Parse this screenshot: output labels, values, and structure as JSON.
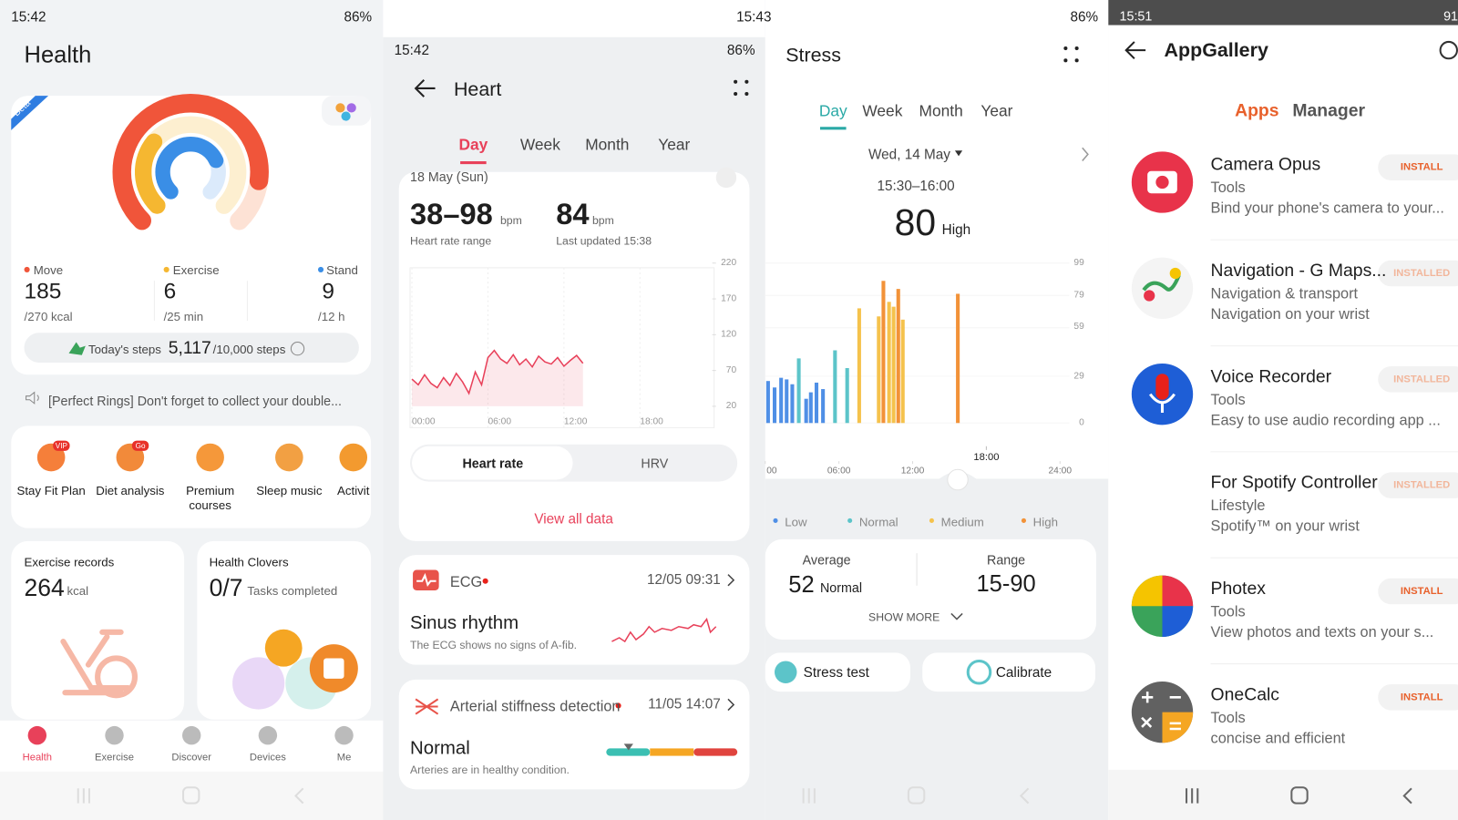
{
  "status": {
    "p1_time": "15:42",
    "p1_batt": "86%",
    "p2_time": "15:42",
    "p2_batt": "86%",
    "p3_time": "15:43",
    "p3_batt": "86%",
    "p4_time": "15:51",
    "p4_batt": "91"
  },
  "health": {
    "title": "Health",
    "badge": "Beta",
    "stats": [
      {
        "label": "Move",
        "value": "185",
        "target": "/270 kcal",
        "color": "#f0553a"
      },
      {
        "label": "Exercise",
        "value": "6",
        "target": "/25 min",
        "color": "#f5b731"
      },
      {
        "label": "Stand",
        "value": "9",
        "target": "/12 h",
        "color": "#3a8ee6"
      }
    ],
    "steps": {
      "label": "Today's steps",
      "value": "5,117",
      "target": "/10,000 steps"
    },
    "notice": "[Perfect Rings] Don't forget to collect your double...",
    "shortcuts": [
      {
        "label": "Stay Fit Plan",
        "badge": "VIP"
      },
      {
        "label": "Diet analysis",
        "badge": "Go"
      },
      {
        "label": "Premium courses"
      },
      {
        "label": "Sleep music"
      },
      {
        "label": "Activit"
      }
    ],
    "exercise_records": {
      "title": "Exercise records",
      "value": "264",
      "unit": "kcal"
    },
    "health_clovers": {
      "title": "Health Clovers",
      "value": "0/7",
      "unit": "Tasks completed"
    },
    "nav": [
      "Health",
      "Exercise",
      "Discover",
      "Devices",
      "Me"
    ]
  },
  "heart": {
    "title": "Heart",
    "tabs": [
      "Day",
      "Week",
      "Month",
      "Year"
    ],
    "date": "18 May (Sun)",
    "range": "38–98",
    "range_unit": "bpm",
    "range_label": "Heart rate range",
    "latest": "84",
    "latest_unit": "bpm",
    "latest_label": "Last updated 15:38",
    "chart": {
      "type": "area",
      "color": "#e8415a",
      "ylim": [
        20,
        220
      ],
      "yticks": [
        220,
        170,
        120,
        70,
        20
      ],
      "xlim": [
        0,
        24
      ],
      "xticks": [
        {
          "value": 0,
          "label": "00:00"
        },
        {
          "value": 6,
          "label": "06:00"
        },
        {
          "value": 12,
          "label": "12:00"
        },
        {
          "value": 18,
          "label": "18:00"
        }
      ],
      "x": [
        0,
        0.5,
        1,
        1.5,
        2,
        2.5,
        3,
        3.5,
        4,
        4.5,
        5,
        5.5,
        6,
        6.5,
        7,
        7.5,
        8,
        8.5,
        9,
        9.5,
        10,
        10.5,
        11,
        11.5,
        12,
        12.5,
        13,
        13.5
      ],
      "values": [
        58,
        50,
        64,
        52,
        46,
        60,
        49,
        66,
        54,
        38,
        68,
        50,
        88,
        98,
        86,
        80,
        92,
        78,
        86,
        75,
        90,
        82,
        79,
        88,
        76,
        84,
        91,
        80
      ]
    },
    "toggle": [
      "Heart rate",
      "HRV"
    ],
    "view_all": "View all data",
    "ecg": {
      "title": "ECG",
      "date": "12/05 09:31",
      "result": "Sinus rhythm",
      "note": "The ECG shows no signs of A-fib."
    },
    "arterial": {
      "title": "Arterial stiffness detection",
      "date": "11/05 14:07",
      "result": "Normal",
      "note": "Arteries are in healthy condition."
    }
  },
  "stress": {
    "title": "Stress",
    "tabs": [
      "Day",
      "Week",
      "Month",
      "Year"
    ],
    "date": "Wed, 14 May",
    "time": "15:30–16:00",
    "value": "80",
    "level": "High",
    "chart": {
      "type": "bar",
      "ylim": [
        0,
        99
      ],
      "yticks": [
        99,
        79,
        59,
        29,
        0
      ],
      "xlim": [
        0,
        24
      ],
      "xticks": [
        {
          "value": 0,
          "label": "00"
        },
        {
          "value": 6,
          "label": "06:00"
        },
        {
          "value": 12,
          "label": "12:00"
        },
        {
          "value": 24,
          "label": "24:00"
        }
      ],
      "selected": {
        "value": 18,
        "label": "18:00"
      },
      "series": [
        {
          "name": "Low",
          "color": "#4f8fe6",
          "x": [
            0.23,
            0.76,
            1.29,
            1.74,
            2.2,
            3.33,
            3.71,
            4.17,
            4.7
          ],
          "values": [
            26,
            22,
            28,
            27,
            24,
            15,
            19,
            25,
            21
          ]
        },
        {
          "name": "Normal",
          "color": "#5cc4c9",
          "x": [
            2.73,
            5.68,
            6.67
          ],
          "values": [
            40,
            45,
            34
          ]
        },
        {
          "name": "Medium",
          "color": "#f5c24c",
          "x": [
            7.65,
            9.24,
            10.08,
            10.45,
            11.2
          ],
          "values": [
            71,
            66,
            75,
            72,
            64
          ]
        },
        {
          "name": "High",
          "color": "#f29238",
          "x": [
            9.62,
            10.83,
            15.68
          ],
          "values": [
            88,
            83,
            80
          ]
        }
      ]
    },
    "average_label": "Average",
    "average": "52",
    "average_level": "Normal",
    "range_label": "Range",
    "range": "15-90",
    "show_more": "SHOW MORE",
    "buttons": [
      "Stress test",
      "Calibrate"
    ]
  },
  "appgallery": {
    "title": "AppGallery",
    "tabs": [
      "Apps",
      "Manager"
    ],
    "apps": [
      {
        "name": "Camera Opus",
        "category": "Tools",
        "description": "Bind your phone's camera to your...",
        "action": "INSTALL",
        "button_color": "#e8612c"
      },
      {
        "name": "Navigation - G Maps...",
        "category": "Navigation & transport",
        "description": "Navigation on your wrist",
        "action": "INSTALLED",
        "button_color": "#f2b69b"
      },
      {
        "name": "Voice Recorder",
        "category": "Tools",
        "description": "Easy to use audio recording app ...",
        "action": "INSTALLED",
        "button_color": "#f2b69b"
      },
      {
        "name": "For Spotify Controller",
        "category": "Lifestyle",
        "description": "Spotify™ on your wrist",
        "action": "INSTALLED",
        "button_color": "#f2b69b"
      },
      {
        "name": "Photex",
        "category": "Tools",
        "description": "View photos and texts on your s...",
        "action": "INSTALL",
        "button_color": "#e8612c"
      },
      {
        "name": "OneCalc",
        "category": "Tools",
        "description": "concise and efficient",
        "action": "INSTALL",
        "button_color": "#e8612c"
      }
    ]
  }
}
